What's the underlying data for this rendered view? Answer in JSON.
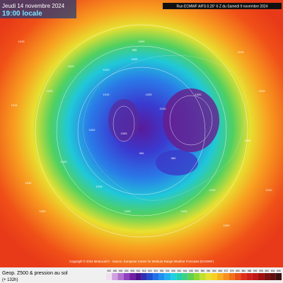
{
  "header": {
    "date": "Jeudi 14 novembre 2024",
    "time": "19:00 locale",
    "run": "Run ECMWF AIFS 0.25° 6 Z du Samedi 9 novembre 2024"
  },
  "map": {
    "pressure_labels": [
      "1015",
      "1025",
      "1020",
      "1010",
      "1005",
      "1000",
      "985",
      "1015",
      "1020",
      "1025",
      "1010",
      "1020",
      "1005",
      "990",
      "1010",
      "1030",
      "1020",
      "1015",
      "1020",
      "980",
      "1030",
      "1015",
      "1010",
      "1025",
      "1035",
      "1015",
      "1020",
      "1025"
    ]
  },
  "footer": {
    "copyright": "Copyright © 2024 Meteociel.fr - Source: European Centre for Medium-Range Weather Forecasts (ECMWF)"
  },
  "legend": {
    "title": "Geop. Z500 & pression au sol",
    "subtitle": "(+ 132h)",
    "scale": [
      "492",
      "496",
      "500",
      "504",
      "508",
      "512",
      "516",
      "520",
      "524",
      "528",
      "532",
      "536",
      "540",
      "544",
      "548",
      "552",
      "556",
      "560",
      "564",
      "568",
      "572",
      "576",
      "580",
      "584",
      "588",
      "592",
      "596",
      "600",
      "604",
      "608"
    ]
  }
}
